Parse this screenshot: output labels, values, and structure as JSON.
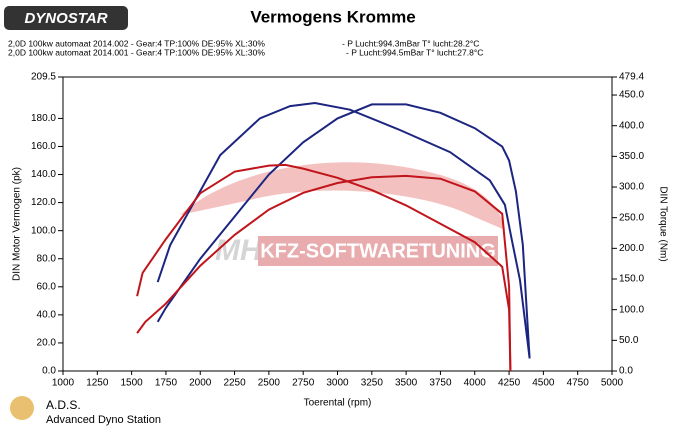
{
  "chart_data": {
    "type": "line",
    "title": "Vermogens Kromme",
    "legend": [
      {
        "text": "2,0D 100kw automaat 2014.002 - Gear:4 TP:100% DE:95% XL:30%",
        "conditions": "- P Lucht:994.3mBar T° lucht:28.2°C",
        "color": "#1c2580"
      },
      {
        "text": "2,0D 100kw automaat 2014.001 - Gear:4 TP:100% DE:95% XL:30%",
        "conditions": "- P Lucht:994.5mBar T° lucht:27.8°C",
        "color": "#c0151b"
      }
    ],
    "xlabel": "Toerental (rpm)",
    "ylabel": "DIN Motor Vermogen (pk)",
    "y2label": "DIN Torque (Nm)",
    "xlim": [
      1000,
      5000
    ],
    "xticks": [
      1000,
      1250,
      1500,
      1750,
      2000,
      2250,
      2500,
      2750,
      3000,
      3250,
      3500,
      3750,
      4000,
      4250,
      4500,
      4750,
      5000
    ],
    "ylim": [
      0,
      209.5
    ],
    "yticks": [
      {
        "value": 0,
        "label": "0.0"
      },
      {
        "value": 20,
        "label": "20.0"
      },
      {
        "value": 40,
        "label": "40.0"
      },
      {
        "value": 60,
        "label": "60.0"
      },
      {
        "value": 80,
        "label": "80.0"
      },
      {
        "value": 100,
        "label": "100.0"
      },
      {
        "value": 120,
        "label": "120.0"
      },
      {
        "value": 140,
        "label": "140.0"
      },
      {
        "value": 160,
        "label": "160.0"
      },
      {
        "value": 180,
        "label": "180.0"
      },
      {
        "value": 209.5,
        "label": "209.5"
      }
    ],
    "y2lim": [
      0,
      479.4
    ],
    "y2ticks": [
      {
        "value": 0,
        "label": "0.0"
      },
      {
        "value": 50,
        "label": "50.0"
      },
      {
        "value": 100,
        "label": "100.0"
      },
      {
        "value": 150,
        "label": "150.0"
      },
      {
        "value": 200,
        "label": "200.0"
      },
      {
        "value": 250,
        "label": "250.0"
      },
      {
        "value": 300,
        "label": "300.0"
      },
      {
        "value": 350,
        "label": "350.0"
      },
      {
        "value": 400,
        "label": "400.0"
      },
      {
        "value": 450,
        "label": "450.0"
      },
      {
        "value": 479.4,
        "label": "479.4"
      }
    ],
    "series": [
      {
        "color": "#1c2580",
        "x": [
          1690,
          1750,
          2000,
          2250,
          2500,
          2750,
          3000,
          3250,
          3500,
          3750,
          4000,
          4200,
          4250,
          4300,
          4350,
          4400
        ],
        "values": [
          35,
          45,
          80,
          110,
          140,
          163,
          180,
          190,
          190,
          184,
          173,
          160,
          150,
          128,
          90,
          9
        ]
      },
      {
        "color": "#1c2580",
        "axis": "y2",
        "x": [
          1690,
          1780,
          2145,
          2435,
          2655,
          2835,
          3090,
          3455,
          3820,
          4110,
          4220,
          4270,
          4330,
          4400
        ],
        "values": [
          145,
          205,
          352,
          412,
          432,
          437,
          426,
          393,
          357,
          311,
          271,
          214,
          148,
          21
        ]
      },
      {
        "color": "#c0151b",
        "x": [
          1540,
          1600,
          1750,
          2000,
          2250,
          2500,
          2750,
          3000,
          3250,
          3500,
          3750,
          4000,
          4200,
          4250,
          4260
        ],
        "values": [
          27,
          35,
          48,
          75,
          97,
          115,
          127,
          134,
          138,
          139,
          137,
          128,
          112,
          60,
          0
        ]
      },
      {
        "color": "#c0151b",
        "axis": "y2",
        "x": [
          1540,
          1580,
          1750,
          2000,
          2250,
          2500,
          2620,
          2750,
          3000,
          3250,
          3500,
          3750,
          4000,
          4200,
          4250,
          4260
        ],
        "values": [
          122,
          160,
          215,
          290,
          325,
          335,
          336,
          330,
          315,
          295,
          270,
          240,
          210,
          170,
          100,
          0
        ]
      }
    ]
  },
  "header": {
    "logo": "DYNOSTAR"
  },
  "watermark": {
    "mark": "MH",
    "text": "KFZ-SOFTWARETUNING"
  },
  "footer": {
    "title": "A.D.S.",
    "subtitle": "Advanced Dyno Station"
  }
}
